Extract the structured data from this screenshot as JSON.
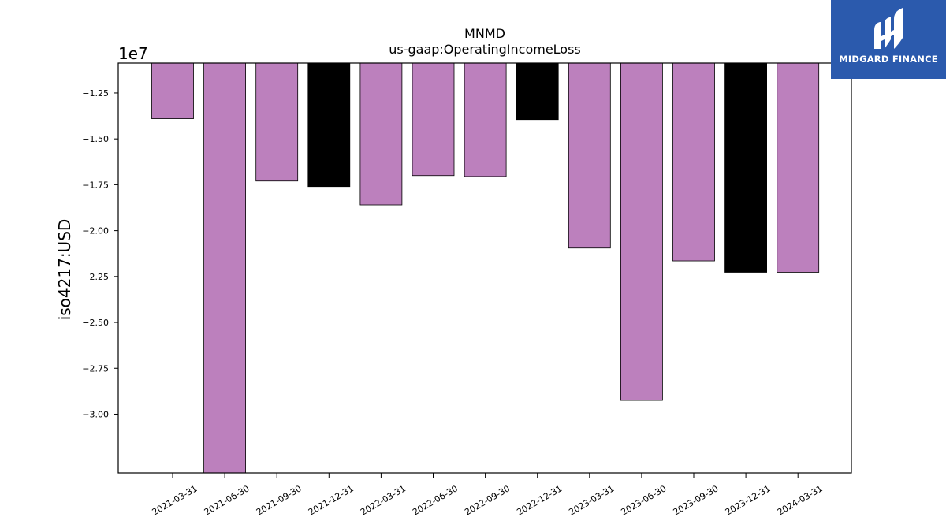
{
  "chart_data": {
    "type": "bar",
    "title": "MNMD",
    "subtitle": "us-gaap:OperatingIncomeLoss",
    "xlabel": "",
    "ylabel": "iso4217:USD",
    "y_exponent_label": "1e7",
    "y_scale_factor": 10000000,
    "ylim": [
      -33200000,
      -10870000
    ],
    "yticks": [
      -12500000,
      -15000000,
      -17500000,
      -20000000,
      -22500000,
      -25000000,
      -27500000,
      -30000000
    ],
    "ytick_labels": [
      "−1.25",
      "−1.50",
      "−1.75",
      "−2.00",
      "−2.25",
      "−2.50",
      "−2.75",
      "−3.00"
    ],
    "categories": [
      "2021-03-31",
      "2021-06-30",
      "2021-09-30",
      "2021-12-31",
      "2022-03-31",
      "2022-06-30",
      "2022-09-30",
      "2022-12-31",
      "2023-03-31",
      "2023-06-30",
      "2023-09-30",
      "2023-12-31",
      "2024-03-31"
    ],
    "values": [
      -13900000,
      -33500000,
      -17300000,
      -17600000,
      -18600000,
      -17000000,
      -17050000,
      -13950000,
      -20950000,
      -29250000,
      -21650000,
      -22270000,
      -22270000
    ],
    "bar_colors": [
      "#bc80bd",
      "#bc80bd",
      "#bc80bd",
      "#000000",
      "#bc80bd",
      "#bc80bd",
      "#bc80bd",
      "#000000",
      "#bc80bd",
      "#bc80bd",
      "#bc80bd",
      "#000000",
      "#bc80bd"
    ],
    "grid": false
  },
  "logo": {
    "text": "MIDGARD FINANCE",
    "bg_color": "#2b5aad",
    "fg_color": "#ffffff"
  }
}
